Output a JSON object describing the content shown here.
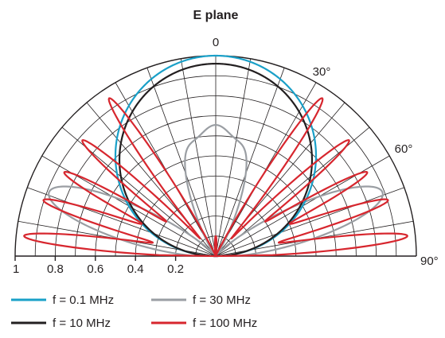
{
  "chart_data": {
    "type": "polar-line",
    "title": "E plane",
    "angle_unit": "degrees",
    "angle_range": [
      -90,
      90
    ],
    "radial_range": [
      0,
      1
    ],
    "radial_ticks": [
      1,
      0.8,
      0.6,
      0.4,
      0.2
    ],
    "radial_tick_labels": [
      "1",
      "0.8",
      "0.6",
      "0.4",
      "0.2"
    ],
    "top_label": "0",
    "angle_labels": [
      {
        "angle": 30,
        "label": "30°"
      },
      {
        "angle": 60,
        "label": "60°"
      },
      {
        "angle": 90,
        "label": "90°"
      }
    ],
    "grid": true,
    "legend_position": "bottom-left",
    "series": [
      {
        "name": "f = 0.1 MHz",
        "color": "#1aa0c8",
        "peak_angles_deg": [
          0
        ],
        "peak_values": [
          1.0
        ]
      },
      {
        "name": "f = 30 MHz",
        "color": "#9a9ea3",
        "peak_angles_deg": [
          -69,
          -17,
          0,
          17,
          69
        ],
        "peak_values": [
          0.89,
          0.42,
          0.59,
          0.42,
          0.89
        ]
      },
      {
        "name": "f = 10 MHz",
        "color": "#231f20",
        "peak_angles_deg": [
          0
        ],
        "peak_values": [
          0.96
        ]
      },
      {
        "name": "f = 100 MHz",
        "color": "#d7262e",
        "peak_angles_deg": [
          -84,
          -72,
          -61,
          -49,
          -34,
          0,
          34,
          49,
          61,
          72,
          84
        ],
        "peak_values": [
          0.96,
          0.9,
          0.86,
          0.88,
          0.95,
          0.1,
          0.95,
          0.88,
          0.86,
          0.9,
          0.96
        ]
      }
    ]
  }
}
